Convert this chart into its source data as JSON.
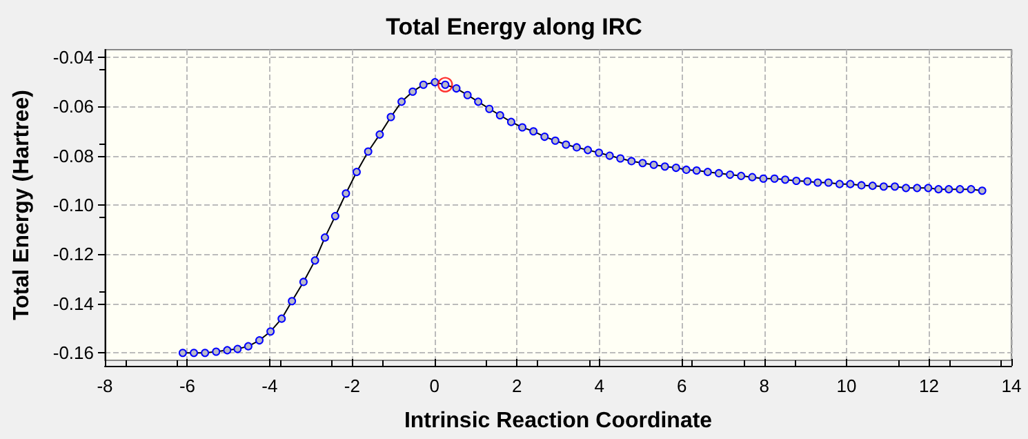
{
  "chart_data": {
    "type": "line",
    "title": "Total Energy along IRC",
    "xlabel": "Intrinsic Reaction Coordinate",
    "ylabel": "Total Energy (Hartree)",
    "xlim": [
      -8,
      14
    ],
    "xticks": [
      -8,
      -6,
      -4,
      -2,
      0,
      2,
      4,
      6,
      8,
      10,
      12,
      14
    ],
    "ylim": [
      -0.163,
      -0.037
    ],
    "yticks": [
      -0.16,
      -0.14,
      -0.12,
      {
        "value": -0.1,
        "label": "-0.10"
      },
      -0.08,
      -0.06,
      -0.04
    ],
    "grid": true,
    "marker": "circle",
    "line_style": "solid",
    "series": [
      {
        "color": "#0000ff",
        "x": [
          -6.11,
          -5.84,
          -5.57,
          -5.3,
          -5.03,
          -4.78,
          -4.52,
          -4.25,
          -3.98,
          -3.71,
          -3.46,
          -3.18,
          -2.9,
          -2.66,
          -2.41,
          -2.15,
          -1.89,
          -1.61,
          -1.33,
          -1.06,
          -0.8,
          -0.53,
          -0.27,
          0.01,
          0.26,
          0.53,
          0.8,
          1.06,
          1.33,
          1.59,
          1.86,
          2.13,
          2.4,
          2.67,
          2.93,
          3.19,
          3.45,
          3.72,
          3.99,
          4.25,
          4.51,
          4.78,
          5.05,
          5.32,
          5.59,
          5.86,
          6.11,
          6.36,
          6.63,
          6.9,
          7.17,
          7.44,
          7.71,
          7.98,
          8.25,
          8.51,
          8.78,
          9.05,
          9.3,
          9.56,
          9.83,
          10.09,
          10.36,
          10.63,
          10.9,
          11.17,
          11.44,
          11.71,
          11.98,
          12.23,
          12.48,
          12.75,
          13.02,
          13.29
        ],
        "values": [
          -0.16,
          -0.16,
          -0.16,
          -0.1595,
          -0.1589,
          -0.1584,
          -0.1573,
          -0.1549,
          -0.1513,
          -0.1461,
          -0.139,
          -0.1312,
          -0.1225,
          -0.1132,
          -0.1045,
          -0.0953,
          -0.0866,
          -0.0783,
          -0.0714,
          -0.0643,
          -0.0581,
          -0.054,
          -0.0512,
          -0.0502,
          -0.0512,
          -0.0527,
          -0.0554,
          -0.0581,
          -0.061,
          -0.0636,
          -0.0663,
          -0.0685,
          -0.0701,
          -0.0723,
          -0.0739,
          -0.0755,
          -0.0766,
          -0.0777,
          -0.0788,
          -0.08,
          -0.0811,
          -0.0822,
          -0.083,
          -0.0837,
          -0.0844,
          -0.0849,
          -0.0857,
          -0.086,
          -0.0866,
          -0.0871,
          -0.0877,
          -0.0882,
          -0.0887,
          -0.0893,
          -0.0893,
          -0.0897,
          -0.0902,
          -0.0904,
          -0.0909,
          -0.0909,
          -0.0915,
          -0.0915,
          -0.092,
          -0.0922,
          -0.0925,
          -0.0925,
          -0.0931,
          -0.0931,
          -0.0931,
          -0.0936,
          -0.0936,
          -0.0936,
          -0.0936,
          -0.0942
        ]
      },
      {
        "type": "scatter",
        "color": "#ff0000",
        "marker": "circle",
        "x": [
          0.26
        ],
        "values": [
          -0.0512
        ]
      }
    ]
  }
}
